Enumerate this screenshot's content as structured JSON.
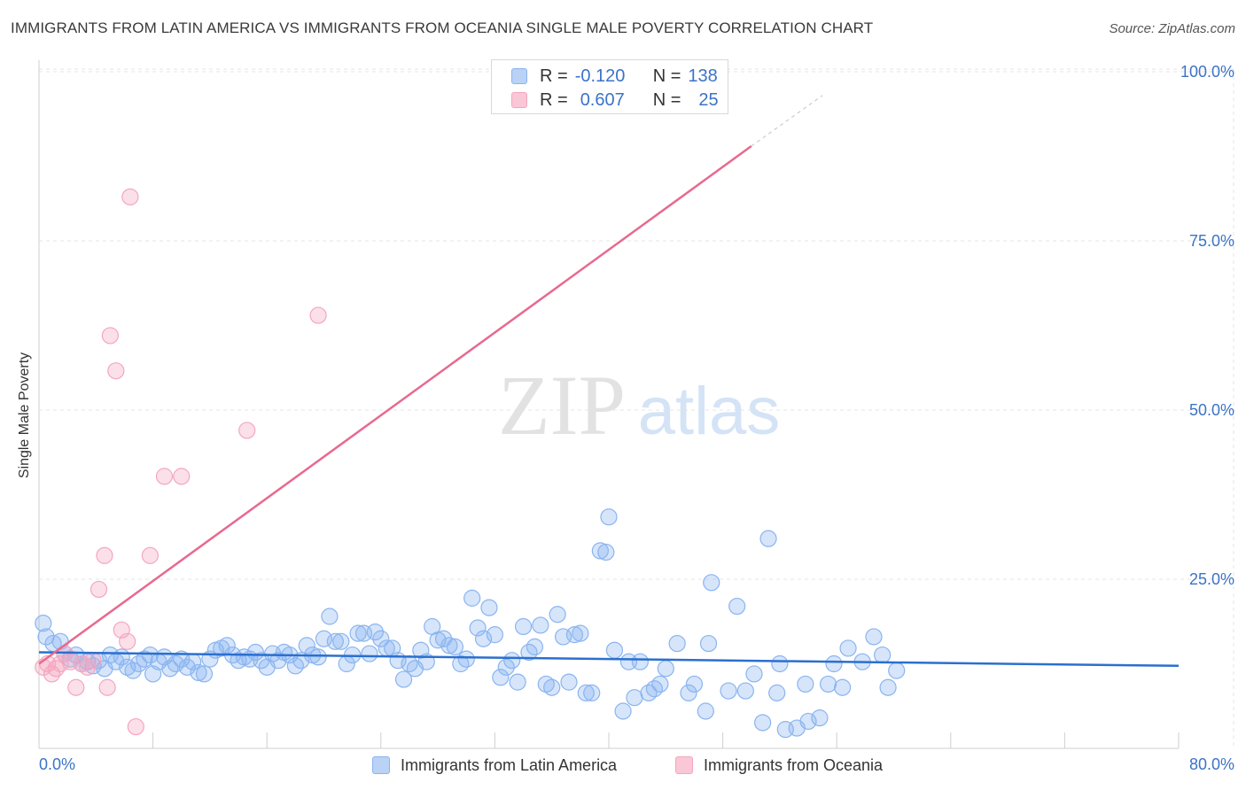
{
  "header": {
    "title": "IMMIGRANTS FROM LATIN AMERICA VS IMMIGRANTS FROM OCEANIA SINGLE MALE POVERTY CORRELATION CHART",
    "source": "Source: ZipAtlas.com"
  },
  "watermark": {
    "zip": "ZIP",
    "atlas": "atlas"
  },
  "legend": {
    "rows": [
      {
        "r_label": "R =",
        "r_value": "-0.120",
        "n_label": "N =",
        "n_value": "138"
      },
      {
        "r_label": "R =",
        "r_value": "0.607",
        "n_label": "N =",
        "n_value": "25"
      }
    ]
  },
  "chart_data": {
    "type": "scatter",
    "title": "IMMIGRANTS FROM LATIN AMERICA VS IMMIGRANTS FROM OCEANIA SINGLE MALE POVERTY CORRELATION CHART",
    "xlabel": "",
    "ylabel": "Single Male Poverty",
    "xlim": [
      0,
      80
    ],
    "ylim": [
      0,
      105
    ],
    "x_tick_labels": [
      "0.0%",
      "80.0%"
    ],
    "y_ticks": [
      25,
      50,
      75,
      100
    ],
    "y_tick_labels": [
      "25.0%",
      "50.0%",
      "75.0%",
      "100.0%"
    ],
    "grid": true,
    "legend_position": "top-center",
    "series": [
      {
        "name": "Immigrants from Latin America",
        "color": "#8ab4f0",
        "trend_color": "#2b6fcf",
        "R": -0.12,
        "N": 138,
        "trend": {
          "x": [
            0,
            80
          ],
          "y": [
            14.2,
            12.2
          ]
        },
        "points": [
          [
            0.3,
            18.5
          ],
          [
            0.5,
            16.5
          ],
          [
            1.0,
            15.5
          ],
          [
            1.5,
            15.8
          ],
          [
            1.8,
            14.0
          ],
          [
            2.2,
            13.2
          ],
          [
            2.6,
            13.8
          ],
          [
            3.0,
            12.5
          ],
          [
            3.4,
            12.8
          ],
          [
            3.8,
            12.2
          ],
          [
            4.2,
            13.0
          ],
          [
            4.6,
            11.8
          ],
          [
            5.0,
            13.8
          ],
          [
            5.4,
            12.8
          ],
          [
            5.8,
            13.5
          ],
          [
            6.2,
            12.0
          ],
          [
            6.6,
            11.5
          ],
          [
            7.0,
            12.5
          ],
          [
            7.4,
            13.2
          ],
          [
            7.8,
            13.8
          ],
          [
            8.0,
            11.0
          ],
          [
            8.4,
            12.8
          ],
          [
            8.8,
            13.5
          ],
          [
            9.2,
            11.8
          ],
          [
            9.6,
            12.5
          ],
          [
            10.0,
            13.2
          ],
          [
            10.4,
            12.0
          ],
          [
            10.8,
            12.8
          ],
          [
            11.2,
            11.2
          ],
          [
            11.6,
            11.0
          ],
          [
            12.0,
            13.2
          ],
          [
            12.4,
            14.5
          ],
          [
            12.8,
            14.8
          ],
          [
            13.2,
            15.2
          ],
          [
            13.6,
            13.8
          ],
          [
            14.0,
            13.0
          ],
          [
            14.4,
            13.5
          ],
          [
            14.8,
            13.2
          ],
          [
            15.2,
            14.2
          ],
          [
            15.6,
            13.0
          ],
          [
            16.0,
            12.0
          ],
          [
            16.4,
            14.0
          ],
          [
            16.8,
            13.0
          ],
          [
            17.2,
            14.2
          ],
          [
            17.6,
            13.8
          ],
          [
            18.0,
            12.2
          ],
          [
            18.4,
            13.0
          ],
          [
            18.8,
            15.2
          ],
          [
            19.2,
            13.8
          ],
          [
            19.6,
            13.5
          ],
          [
            20.0,
            16.2
          ],
          [
            20.4,
            19.5
          ],
          [
            20.8,
            15.8
          ],
          [
            21.2,
            15.8
          ],
          [
            21.6,
            12.5
          ],
          [
            22.0,
            13.8
          ],
          [
            22.4,
            17.0
          ],
          [
            22.8,
            17.0
          ],
          [
            23.2,
            14.0
          ],
          [
            23.6,
            17.2
          ],
          [
            24.0,
            16.2
          ],
          [
            24.4,
            14.8
          ],
          [
            24.8,
            14.8
          ],
          [
            25.2,
            13.0
          ],
          [
            25.6,
            10.2
          ],
          [
            26.0,
            12.5
          ],
          [
            26.4,
            11.8
          ],
          [
            26.8,
            14.5
          ],
          [
            27.2,
            12.8
          ],
          [
            27.6,
            18.0
          ],
          [
            28.0,
            16.0
          ],
          [
            28.4,
            16.2
          ],
          [
            28.8,
            15.2
          ],
          [
            29.2,
            15.0
          ],
          [
            29.6,
            12.5
          ],
          [
            30.0,
            13.2
          ],
          [
            30.4,
            22.2
          ],
          [
            30.8,
            17.8
          ],
          [
            31.2,
            16.2
          ],
          [
            31.6,
            20.8
          ],
          [
            32.0,
            16.8
          ],
          [
            32.4,
            10.5
          ],
          [
            32.8,
            12.0
          ],
          [
            33.2,
            13.0
          ],
          [
            33.6,
            9.8
          ],
          [
            34.0,
            18.0
          ],
          [
            34.4,
            14.2
          ],
          [
            34.8,
            15.0
          ],
          [
            35.2,
            18.2
          ],
          [
            35.6,
            9.5
          ],
          [
            36.0,
            9.0
          ],
          [
            36.4,
            19.8
          ],
          [
            36.8,
            16.5
          ],
          [
            37.2,
            9.8
          ],
          [
            37.6,
            16.8
          ],
          [
            38.0,
            17.0
          ],
          [
            38.4,
            8.2
          ],
          [
            38.8,
            8.2
          ],
          [
            39.4,
            29.2
          ],
          [
            39.8,
            29.0
          ],
          [
            40.0,
            34.2
          ],
          [
            40.4,
            14.5
          ],
          [
            41.0,
            5.5
          ],
          [
            41.4,
            12.8
          ],
          [
            41.8,
            7.5
          ],
          [
            42.2,
            12.8
          ],
          [
            42.8,
            8.2
          ],
          [
            43.2,
            8.8
          ],
          [
            43.6,
            9.5
          ],
          [
            44.0,
            11.8
          ],
          [
            44.8,
            15.5
          ],
          [
            45.6,
            8.2
          ],
          [
            46.0,
            9.5
          ],
          [
            46.8,
            5.5
          ],
          [
            47.0,
            15.5
          ],
          [
            47.2,
            24.5
          ],
          [
            48.4,
            8.5
          ],
          [
            49.0,
            21.0
          ],
          [
            49.6,
            8.5
          ],
          [
            50.2,
            11.0
          ],
          [
            50.8,
            3.8
          ],
          [
            51.2,
            31.0
          ],
          [
            51.8,
            8.2
          ],
          [
            52.0,
            12.5
          ],
          [
            52.4,
            2.8
          ],
          [
            53.2,
            3.0
          ],
          [
            53.8,
            9.5
          ],
          [
            54.0,
            4.0
          ],
          [
            54.8,
            4.5
          ],
          [
            55.4,
            9.5
          ],
          [
            55.8,
            12.5
          ],
          [
            56.4,
            9.0
          ],
          [
            56.8,
            14.8
          ],
          [
            57.8,
            12.8
          ],
          [
            58.6,
            16.5
          ],
          [
            59.2,
            13.8
          ],
          [
            59.6,
            9.0
          ],
          [
            60.2,
            11.5
          ]
        ]
      },
      {
        "name": "Immigrants from Oceania",
        "color": "#f4a6bf",
        "trend_color": "#e8698f",
        "R": 0.607,
        "N": 25,
        "trend": {
          "x": [
            0,
            50
          ],
          "y": [
            12.5,
            89.0
          ]
        },
        "trend_dashed": {
          "x": [
            50,
            55
          ],
          "y": [
            89.0,
            96.5
          ]
        },
        "points": [
          [
            0.3,
            12.0
          ],
          [
            0.6,
            12.5
          ],
          [
            0.9,
            11.0
          ],
          [
            1.2,
            11.8
          ],
          [
            1.5,
            12.5
          ],
          [
            1.8,
            14.0
          ],
          [
            2.2,
            12.8
          ],
          [
            2.6,
            9.0
          ],
          [
            3.0,
            12.5
          ],
          [
            3.4,
            12.0
          ],
          [
            3.8,
            13.0
          ],
          [
            4.2,
            23.5
          ],
          [
            4.6,
            28.5
          ],
          [
            5.0,
            61.0
          ],
          [
            5.4,
            55.8
          ],
          [
            5.8,
            17.5
          ],
          [
            6.2,
            15.8
          ],
          [
            6.4,
            81.5
          ],
          [
            6.8,
            3.2
          ],
          [
            7.8,
            28.5
          ],
          [
            8.8,
            40.2
          ],
          [
            10.0,
            40.2
          ],
          [
            14.6,
            47.0
          ],
          [
            19.6,
            64.0
          ],
          [
            4.8,
            9.0
          ]
        ]
      }
    ]
  },
  "bottom_legend": [
    {
      "label": "Immigrants from Latin America"
    },
    {
      "label": "Immigrants from Oceania"
    }
  ],
  "axis": {
    "ylabel": "Single Male Poverty",
    "x_left": "0.0%",
    "x_right": "80.0%"
  }
}
